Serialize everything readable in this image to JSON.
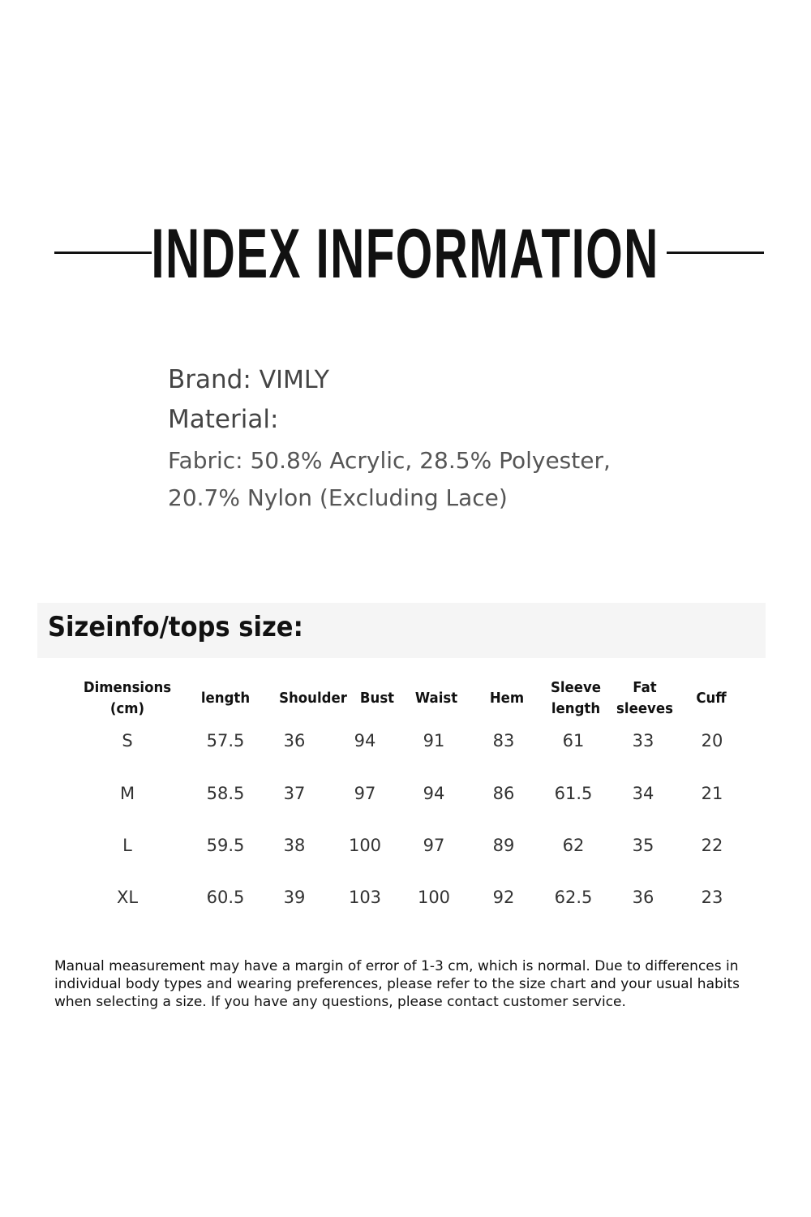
{
  "title": "INDEX INFORMATION",
  "info": {
    "brand_label": "Brand:",
    "brand_value": "VIMLY",
    "material_label": "Material:",
    "fabric_line1": "Fabric: 50.8% Acrylic, 28.5% Polyester,",
    "fabric_line2": "20.7% Nylon (Excluding Lace)"
  },
  "size_table": {
    "heading": "Sizeinfo/tops size:",
    "columns": [
      "Dimensions\n(cm)",
      "length",
      "Shoulder",
      "Bust",
      "Waist",
      "Hem",
      "Sleeve\nlength",
      "Fat\nsleeves",
      "Cuff"
    ],
    "rows": [
      [
        "S",
        "57.5",
        "36",
        "94",
        "91",
        "83",
        "61",
        "33",
        "20"
      ],
      [
        "M",
        "58.5",
        "37",
        "97",
        "94",
        "86",
        "61.5",
        "34",
        "21"
      ],
      [
        "L",
        "59.5",
        "38",
        "100",
        "97",
        "89",
        "62",
        "35",
        "22"
      ],
      [
        "XL",
        "60.5",
        "39",
        "103",
        "100",
        "92",
        "62.5",
        "36",
        "23"
      ]
    ]
  },
  "note": "Manual measurement may have a margin of error of 1-3 cm, which is normal. Due to differences in individual body types and wearing preferences, please refer to the size chart and your usual habits when selecting a size. If you have any questions, please contact customer service."
}
